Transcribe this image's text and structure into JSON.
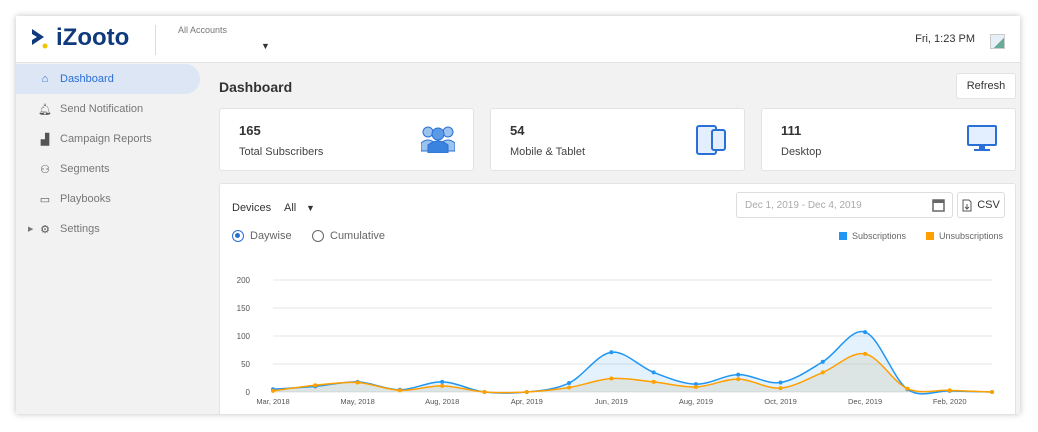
{
  "header": {
    "logo": "iZooto",
    "account_label": "All Accounts",
    "time": "Fri, 1:23 PM"
  },
  "sidebar": {
    "items": [
      {
        "label": "Dashboard",
        "icon": "home-icon",
        "active": true
      },
      {
        "label": "Send Notification",
        "icon": "bell-icon"
      },
      {
        "label": "Campaign Reports",
        "icon": "bar-chart-icon"
      },
      {
        "label": "Segments",
        "icon": "users-icon"
      },
      {
        "label": "Playbooks",
        "icon": "gamepad-icon"
      },
      {
        "label": "Settings",
        "icon": "gear-icon",
        "expandable": true
      }
    ]
  },
  "main": {
    "title": "Dashboard",
    "refresh_label": "Refresh",
    "cards": [
      {
        "value": "165",
        "label": "Total Subscribers",
        "icon": "users-group-icon"
      },
      {
        "value": "54",
        "label": "Mobile & Tablet",
        "icon": "mobile-tablet-icon"
      },
      {
        "value": "111",
        "label": "Desktop",
        "icon": "desktop-icon"
      }
    ],
    "filters": {
      "devices_label": "Devices",
      "devices_value": "All",
      "date_placeholder": "Dec 1, 2019 - Dec 4, 2019",
      "csv_label": "CSV",
      "daywise_label": "Daywise",
      "cumulative_label": "Cumulative",
      "selected": "Daywise"
    }
  },
  "chart_data": {
    "type": "area",
    "ylim": [
      0,
      200
    ],
    "yticks": [
      "0",
      "50",
      "100",
      "150",
      "200"
    ],
    "xtick_labels": [
      "Mar, 2018",
      "May, 2018",
      "Aug, 2018",
      "Apr, 2019",
      "Jun, 2019",
      "Aug, 2019",
      "Oct, 2019",
      "Dec, 2019",
      "Feb, 2020"
    ],
    "grid": true,
    "legend": "top-right",
    "series": [
      {
        "name": "Subscriptions",
        "color": "#2196f3",
        "values": [
          5,
          10,
          18,
          4,
          18,
          0,
          0,
          16,
          71,
          35,
          14,
          31,
          17,
          54,
          107,
          5,
          2,
          0
        ]
      },
      {
        "name": "Unsubscriptions",
        "color": "#ffa000",
        "values": [
          2,
          12,
          17,
          3,
          11,
          0,
          0,
          8,
          24,
          18,
          9,
          23,
          7,
          35,
          68,
          6,
          3,
          0
        ]
      }
    ]
  }
}
